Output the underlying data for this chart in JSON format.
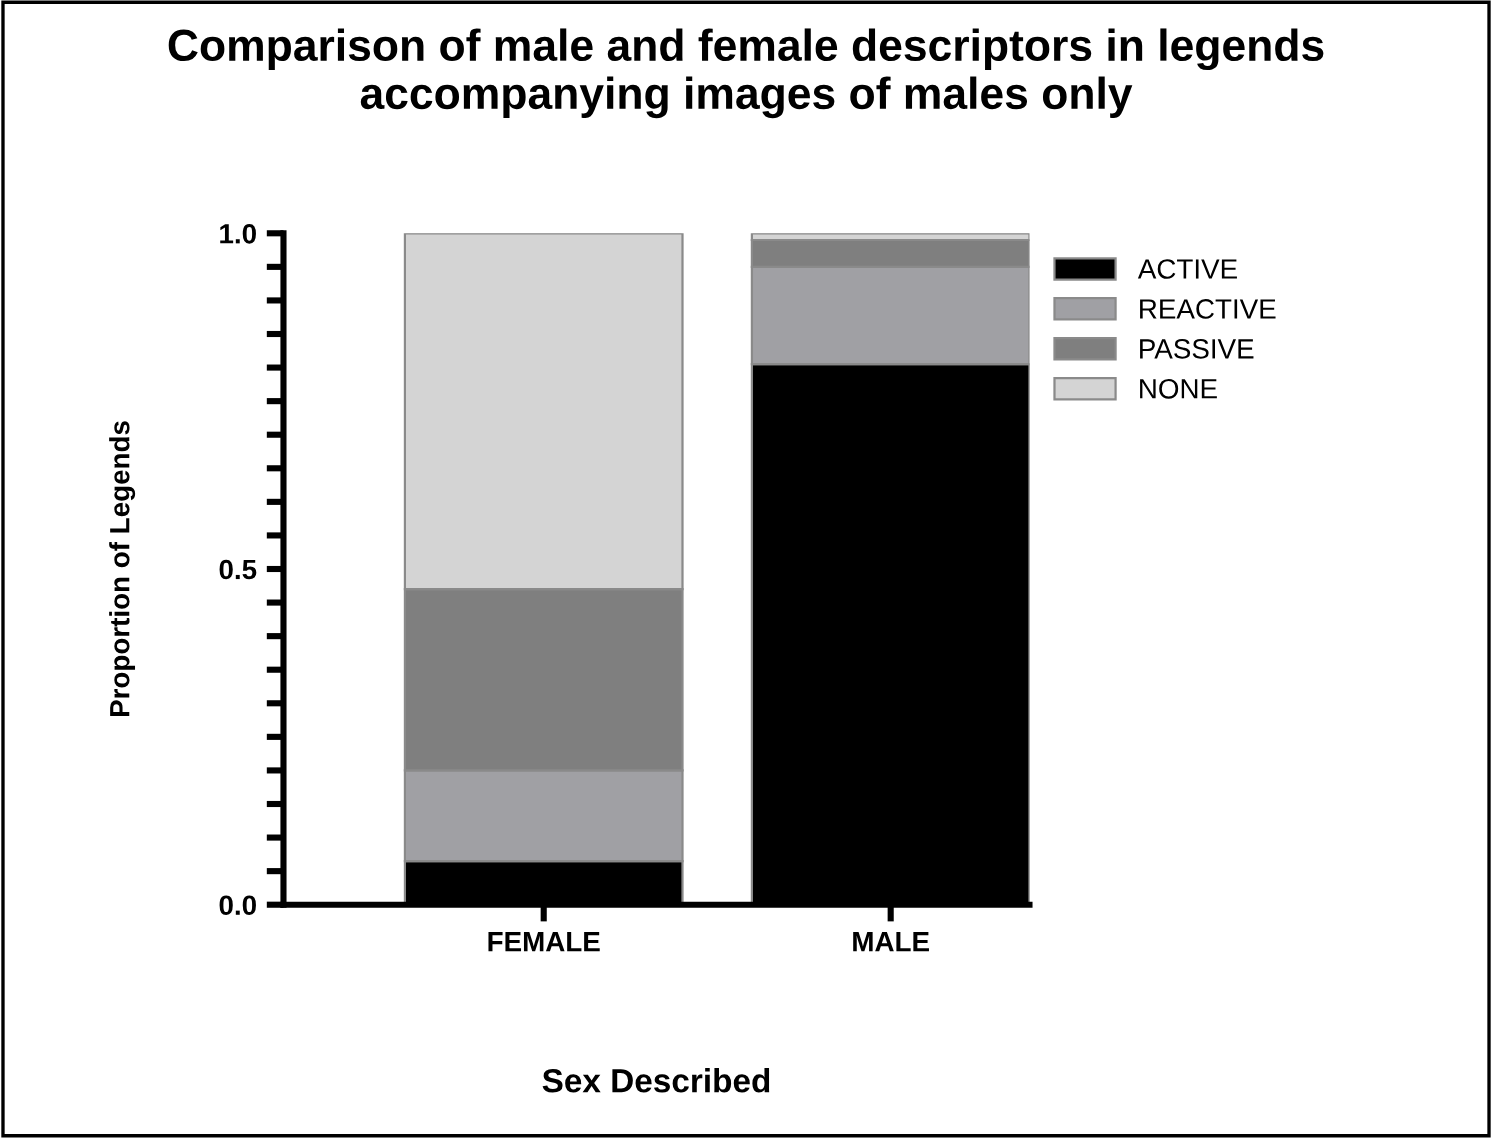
{
  "chart_data": {
    "type": "bar",
    "title": "Comparison of male and female descriptors in legends\naccompanying images of males only",
    "xlabel": "Sex Described",
    "ylabel": "Proportion of Legends",
    "categories": [
      "FEMALE",
      "MALE"
    ],
    "stacked": true,
    "series": [
      {
        "name": "ACTIVE",
        "color": "#000000",
        "values": [
          0.065,
          0.805
        ]
      },
      {
        "name": "REACTIVE",
        "color": "#a0a0a4",
        "values": [
          0.135,
          0.145
        ]
      },
      {
        "name": "PASSIVE",
        "color": "#7f7f7f",
        "values": [
          0.27,
          0.04
        ]
      },
      {
        "name": "NONE",
        "color": "#d4d4d4",
        "values": [
          0.53,
          0.01
        ]
      }
    ],
    "ylim": [
      0,
      1
    ],
    "yticks": [
      {
        "value": 0,
        "label": "0.0"
      },
      {
        "value": 0.05,
        "label": null
      },
      {
        "value": 0.1,
        "label": null
      },
      {
        "value": 0.15,
        "label": null
      },
      {
        "value": 0.2,
        "label": null
      },
      {
        "value": 0.25,
        "label": null
      },
      {
        "value": 0.3,
        "label": null
      },
      {
        "value": 0.35,
        "label": null
      },
      {
        "value": 0.4,
        "label": null
      },
      {
        "value": 0.45,
        "label": null
      },
      {
        "value": 0.5,
        "label": "0.5"
      },
      {
        "value": 0.55,
        "label": null
      },
      {
        "value": 0.6,
        "label": null
      },
      {
        "value": 0.65,
        "label": null
      },
      {
        "value": 0.7,
        "label": null
      },
      {
        "value": 0.75,
        "label": null
      },
      {
        "value": 0.8,
        "label": null
      },
      {
        "value": 0.85,
        "label": null
      },
      {
        "value": 0.9,
        "label": null
      },
      {
        "value": 0.95,
        "label": null
      },
      {
        "value": 1,
        "label": "1.0"
      }
    ],
    "grid": false,
    "legend": "right"
  }
}
